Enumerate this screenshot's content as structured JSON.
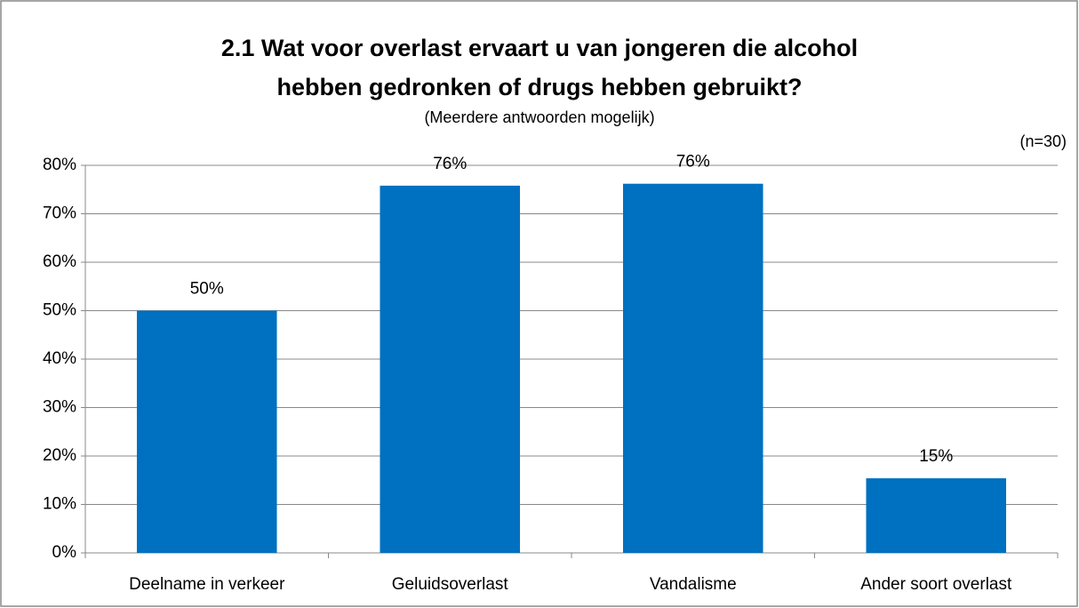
{
  "chart_data": {
    "type": "bar",
    "title": [
      "2.1 Wat voor overlast ervaart u van jongeren die alcohol",
      "hebben gedronken of drugs hebben gebruikt?"
    ],
    "subtitle": "(Meerdere antwoorden mogelijk)",
    "annotation": "(n=30)",
    "categories": [
      "Deelname in verkeer",
      "Geluidsoverlast",
      "Vandalisme",
      "Ander soort overlast"
    ],
    "values": [
      50,
      75.8,
      76.2,
      15.4
    ],
    "value_labels": [
      "50%",
      "76%",
      "76%",
      "15%"
    ],
    "color": "#0070c0",
    "ylim": [
      0,
      80
    ],
    "yticks": [
      {
        "value": 0,
        "label": "0%"
      },
      {
        "value": 10,
        "label": "10%"
      },
      {
        "value": 20,
        "label": "20%"
      },
      {
        "value": 30,
        "label": "30%"
      },
      {
        "value": 40,
        "label": "40%"
      },
      {
        "value": 50,
        "label": "50%"
      },
      {
        "value": 60,
        "label": "60%"
      },
      {
        "value": 70,
        "label": "70%"
      },
      {
        "value": 80,
        "label": "80%"
      }
    ],
    "grid": true
  }
}
